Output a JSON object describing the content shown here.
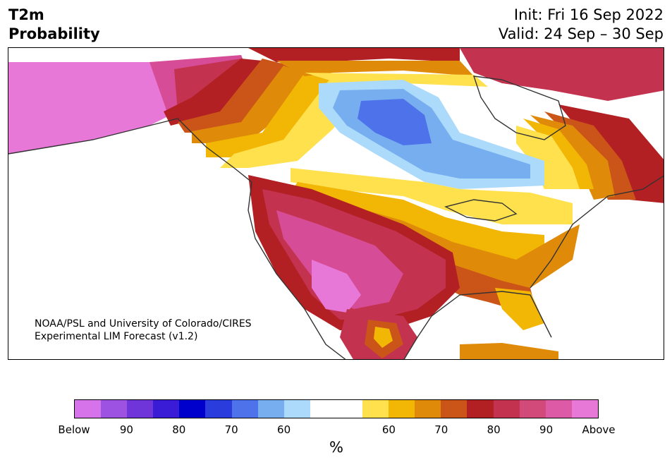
{
  "header": {
    "title_line1": "T2m",
    "title_line2": "Probability",
    "init": "Init: Fri 16 Sep 2022",
    "valid": "Valid: 24 Sep – 30 Sep"
  },
  "credit": {
    "line1": "NOAA/PSL and University of Colorado/CIRES",
    "line2": "Experimental LIM Forecast (v1.2)"
  },
  "colorbar": {
    "colors": [
      "#d673ea",
      "#9e52e2",
      "#6f35d9",
      "#3a1bd6",
      "#0000cc",
      "#2a3ddc",
      "#4d72ea",
      "#76aef0",
      "#acdafb",
      "#ffffff",
      "#ffffff",
      "#ffe04d",
      "#f2b705",
      "#e08a0a",
      "#cb5418",
      "#b32024",
      "#c33350",
      "#d14a7a",
      "#dc5aa6",
      "#e878d8"
    ],
    "tick_labels": [
      "Below",
      "90",
      "80",
      "70",
      "60",
      "60",
      "70",
      "80",
      "90",
      "Above"
    ],
    "unit": "%"
  },
  "map": {
    "colors": {
      "above_max": "#e878d8",
      "above_90": "#d74c97",
      "above_85": "#c33350",
      "above_80": "#b32024",
      "above_75": "#cb5418",
      "above_70": "#e08a0a",
      "above_65": "#f2b705",
      "above_60": "#ffe04d",
      "neutral": "#ffffff",
      "below_60": "#acdafb",
      "below_65": "#76aef0",
      "below_70": "#4d72ea",
      "coastline": "#333333"
    }
  }
}
